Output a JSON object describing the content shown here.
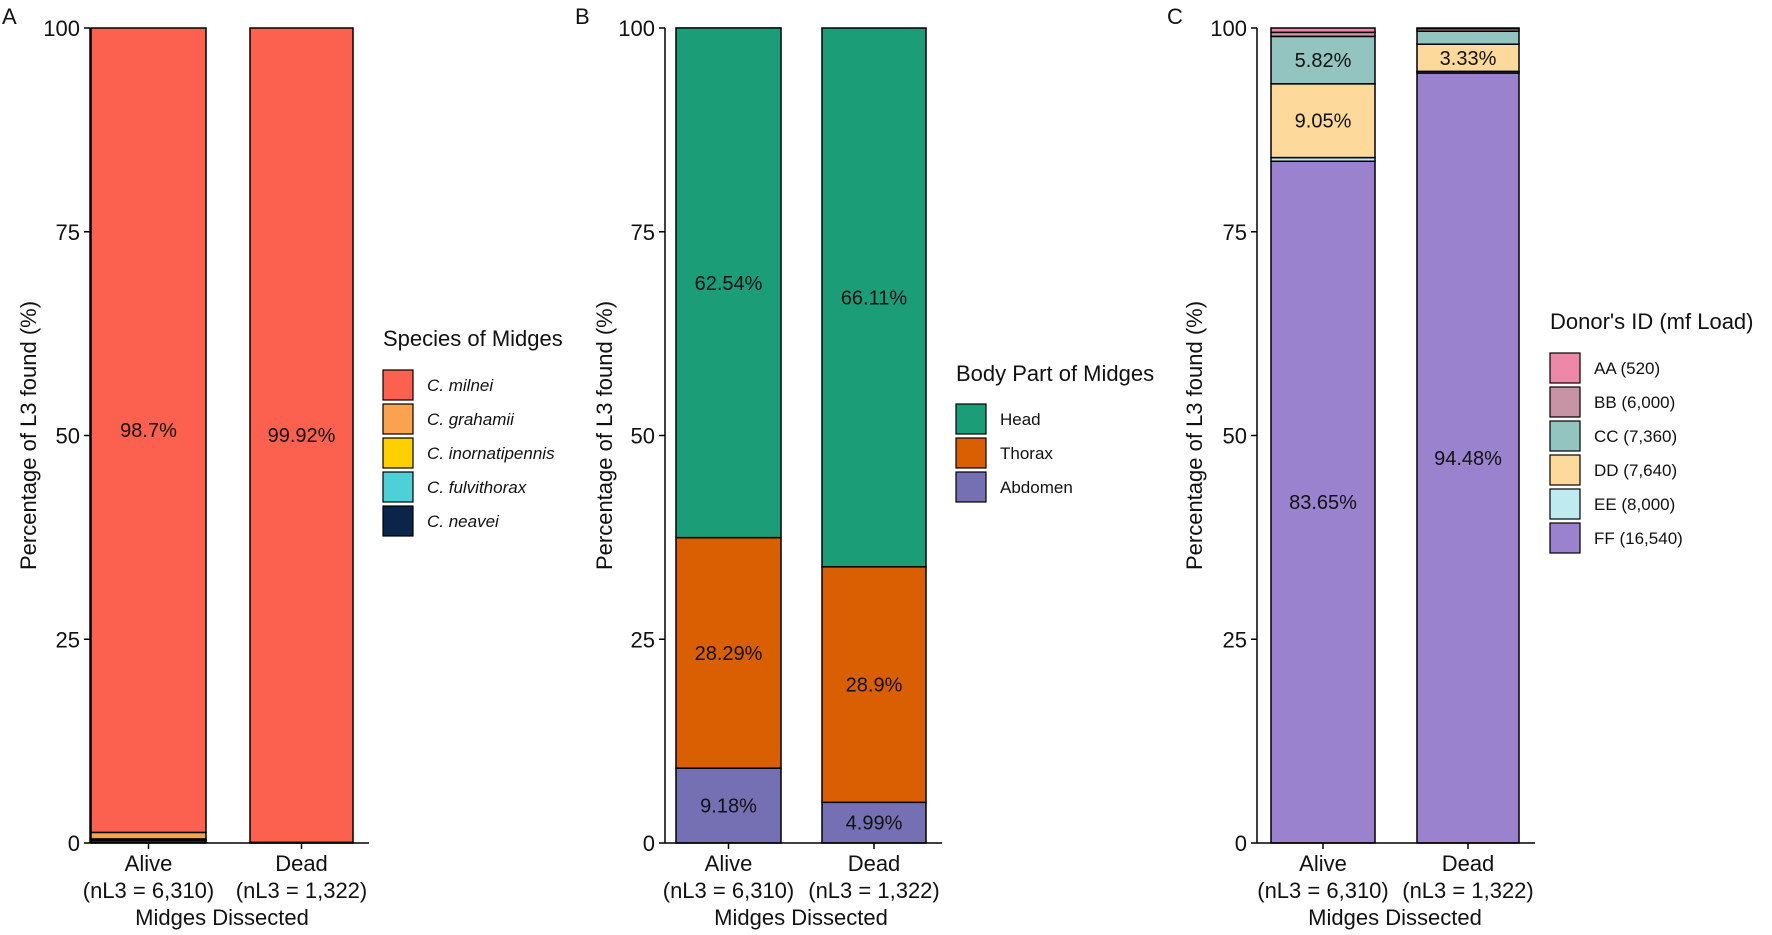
{
  "panels": [
    {
      "id": "A",
      "letter": "A",
      "type": "stacked-bar",
      "title": "",
      "xlabel": "Midges Dissected",
      "ylabel": "Percentage of L3 found (%)",
      "ylim": [
        0,
        100
      ],
      "yticks": [
        "0",
        "25",
        "50",
        "75",
        "100"
      ],
      "categories": [
        {
          "name": "Alive",
          "n": "(nL3 = 6,310)"
        },
        {
          "name": "Dead",
          "n": "(nL3 = 1,322)"
        }
      ],
      "legend": {
        "title": "Species of Midges",
        "italic": true,
        "position": "right"
      },
      "series": [
        {
          "name": "C. neavei",
          "color": "#0b2449",
          "values": [
            0.35,
            0.02
          ]
        },
        {
          "name": "C. fulvithorax",
          "color": "#4fd0d8",
          "values": [
            0.05,
            0.01
          ]
        },
        {
          "name": "C. inornatipennis",
          "color": "#ffd000",
          "values": [
            0.1,
            0.01
          ]
        },
        {
          "name": "C. grahamii",
          "color": "#f9a250",
          "values": [
            0.8,
            0.04
          ]
        },
        {
          "name": "C. milnei",
          "color": "#fc614f",
          "values": [
            98.7,
            99.92
          ]
        }
      ],
      "labels": [
        {
          "series": "C. milnei",
          "bar": 0,
          "text": "98.7%"
        },
        {
          "series": "C. milnei",
          "bar": 1,
          "text": "99.92%"
        }
      ]
    },
    {
      "id": "B",
      "letter": "B",
      "type": "stacked-bar",
      "title": "",
      "xlabel": "Midges Dissected",
      "ylabel": "Percentage of L3 found (%)",
      "ylim": [
        0,
        100
      ],
      "yticks": [
        "0",
        "25",
        "50",
        "75",
        "100"
      ],
      "categories": [
        {
          "name": "Alive",
          "n": "(nL3 = 6,310)"
        },
        {
          "name": "Dead",
          "n": "(nL3 = 1,322)"
        }
      ],
      "legend": {
        "title": "Body Part of Midges",
        "italic": false,
        "position": "right"
      },
      "series": [
        {
          "name": "Abdomen",
          "color": "#7570b3",
          "values": [
            9.18,
            4.99
          ]
        },
        {
          "name": "Thorax",
          "color": "#d95f02",
          "values": [
            28.29,
            28.9
          ]
        },
        {
          "name": "Head",
          "color": "#1b9e77",
          "values": [
            62.54,
            66.11
          ]
        }
      ],
      "labels": [
        {
          "series": "Abdomen",
          "bar": 0,
          "text": "9.18%"
        },
        {
          "series": "Abdomen",
          "bar": 1,
          "text": "4.99%"
        },
        {
          "series": "Thorax",
          "bar": 0,
          "text": "28.29%"
        },
        {
          "series": "Thorax",
          "bar": 1,
          "text": "28.9%"
        },
        {
          "series": "Head",
          "bar": 0,
          "text": "62.54%"
        },
        {
          "series": "Head",
          "bar": 1,
          "text": "66.11%"
        }
      ]
    },
    {
      "id": "C",
      "letter": "C",
      "type": "stacked-bar",
      "title": "",
      "xlabel": "Midges Dissected",
      "ylabel": "Percentage of L3 found (%)",
      "ylim": [
        0,
        100
      ],
      "yticks": [
        "0",
        "25",
        "50",
        "75",
        "100"
      ],
      "categories": [
        {
          "name": "Alive",
          "n": "(nL3 = 6,310)"
        },
        {
          "name": "Dead",
          "n": "(nL3 = 1,322)"
        }
      ],
      "legend": {
        "title": "Donor's ID (mf Load)",
        "italic": false,
        "position": "right"
      },
      "series": [
        {
          "name": "FF (16,540)",
          "color": "#9b82cf",
          "values": [
            83.65,
            94.48
          ]
        },
        {
          "name": "EE (8,000)",
          "color": "#bfeaf0",
          "values": [
            0.45,
            0.2
          ]
        },
        {
          "name": "DD (7,640)",
          "color": "#fdd99b",
          "values": [
            9.05,
            3.33
          ]
        },
        {
          "name": "CC (7,360)",
          "color": "#93c4c0",
          "values": [
            5.82,
            1.6
          ]
        },
        {
          "name": "BB (6,000)",
          "color": "#c993a6",
          "values": [
            0.5,
            0.3
          ]
        },
        {
          "name": "AA (520)",
          "color": "#ee88a8",
          "values": [
            0.53,
            0.09
          ]
        }
      ],
      "labels": [
        {
          "series": "FF (16,540)",
          "bar": 0,
          "text": "83.65%"
        },
        {
          "series": "FF (16,540)",
          "bar": 1,
          "text": "94.48%"
        },
        {
          "series": "DD (7,640)",
          "bar": 0,
          "text": "9.05%"
        },
        {
          "series": "DD (7,640)",
          "bar": 1,
          "text": "3.33%"
        },
        {
          "series": "CC (7,360)",
          "bar": 0,
          "text": "5.82%"
        }
      ]
    }
  ]
}
